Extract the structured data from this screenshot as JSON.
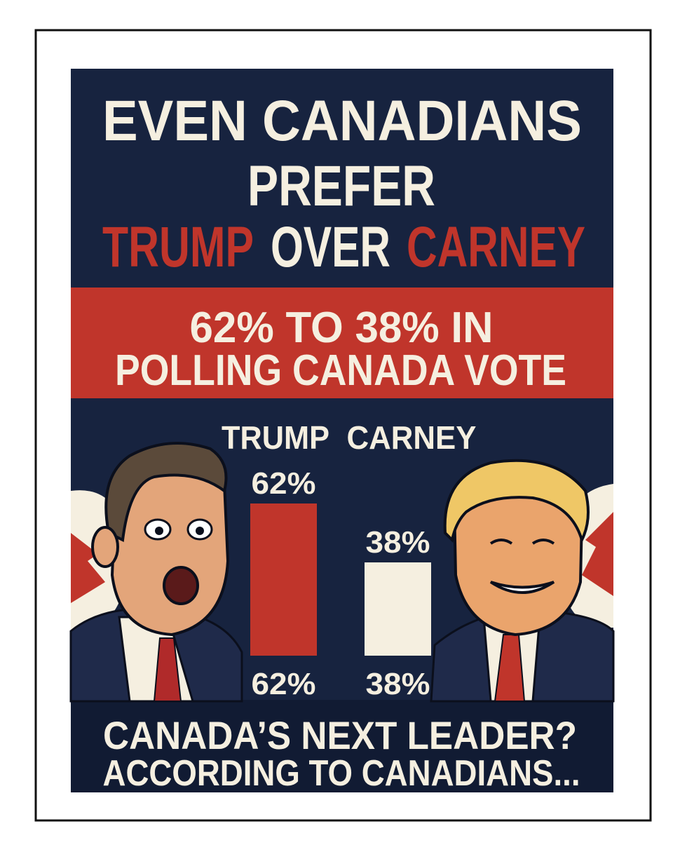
{
  "poster": {
    "title": {
      "line1": "EVEN CANADIANS",
      "line2": "PREFER",
      "name1": "TRUMP",
      "middle": "OVER",
      "name2": "CARNEY"
    },
    "banner": {
      "line1": "62% TO 38% IN",
      "line2": "POLLING CANADA VOTE"
    },
    "footer": {
      "line1": "CANADA’S NEXT LEADER?",
      "line2": "ACCORDING TO CANADIANS..."
    }
  },
  "chart_data": {
    "type": "bar",
    "categories": [
      "TRUMP",
      "CARNEY"
    ],
    "values": [
      62,
      38
    ],
    "value_labels": [
      "62%",
      "38%"
    ],
    "colors": [
      "#c0352b",
      "#f5efe0"
    ]
  }
}
